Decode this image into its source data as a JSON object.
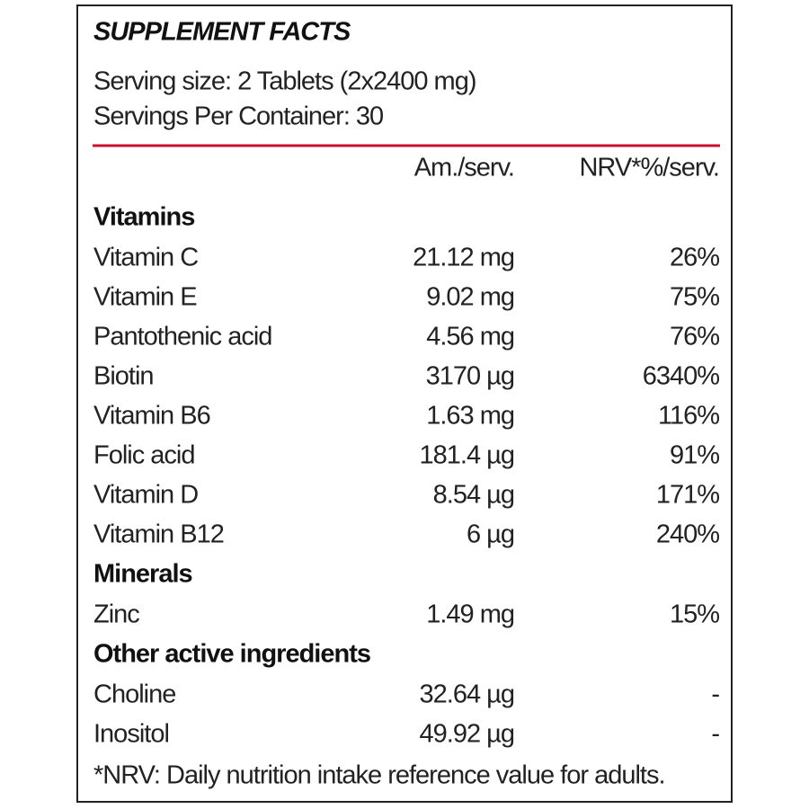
{
  "title": "SUPPLEMENT FACTS",
  "serving": [
    "Serving size: 2 Tablets (2x2400 mg)",
    "Servings Per Container: 30"
  ],
  "header": [
    "Am./serv.",
    "NRV*%/serv."
  ],
  "sections": [
    {
      "name": "Vitamins",
      "rows": [
        [
          "Vitamin C",
          "21.12 mg",
          "26%"
        ],
        [
          "Vitamin E",
          "9.02 mg",
          "75%"
        ],
        [
          "Pantothenic acid",
          "4.56 mg",
          "76%"
        ],
        [
          "Biotin",
          "3170 µg",
          "6340%"
        ],
        [
          "Vitamin B6",
          "1.63 mg",
          "116%"
        ],
        [
          "Folic acid",
          "181.4 µg",
          "91%"
        ],
        [
          "Vitamin D",
          "8.54 µg",
          "171%"
        ],
        [
          "Vitamin B12",
          "6 µg",
          "240%"
        ]
      ]
    },
    {
      "name": "Minerals",
      "rows": [
        [
          "Zinc",
          "1.49 mg",
          "15%"
        ]
      ]
    },
    {
      "name": "Other active ingredients",
      "rows": [
        [
          "Choline",
          "32.64 µg",
          "-"
        ],
        [
          "Inositol",
          "49.92 µg",
          "-"
        ]
      ]
    }
  ],
  "footnote": "*NRV: Daily nutrition intake reference value for adults."
}
